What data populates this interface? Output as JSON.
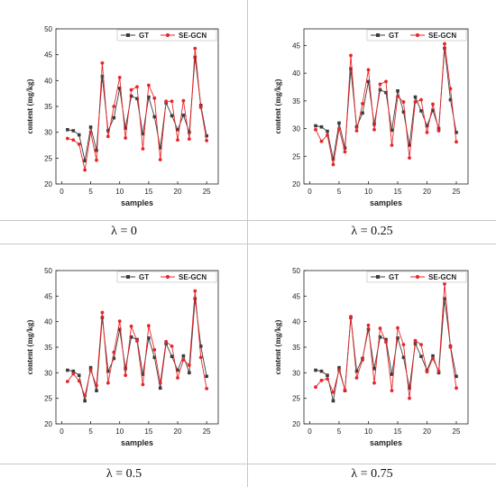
{
  "colors": {
    "gt": "#3b3b3b",
    "pred": "#e8262a",
    "axis": "#222222",
    "frame": "#c8c8c8"
  },
  "legend": {
    "gt_label": "GT",
    "pred_label": "SE-GCN"
  },
  "captions": [
    "λ = 0",
    "λ = 0.25",
    "λ = 0.5",
    "λ = 0.75"
  ],
  "chart_data": [
    {
      "type": "line",
      "xlabel": "samples",
      "ylabel": "content (mg/kg)",
      "xlim": [
        -1,
        27
      ],
      "ylim": [
        20,
        50
      ],
      "xticks": [
        0,
        5,
        10,
        15,
        20,
        25
      ],
      "yticks": [
        20,
        25,
        30,
        35,
        40,
        45,
        50
      ],
      "legend_position": "top-right",
      "x": [
        1,
        2,
        3,
        4,
        5,
        6,
        7,
        8,
        9,
        10,
        11,
        12,
        13,
        14,
        15,
        16,
        17,
        18,
        19,
        20,
        21,
        22,
        23,
        24,
        25
      ],
      "series": [
        {
          "name": "GT",
          "values": [
            30.5,
            30.3,
            29.5,
            24.5,
            31.0,
            26.5,
            40.8,
            30.3,
            32.8,
            38.5,
            30.8,
            37.0,
            36.5,
            29.7,
            36.8,
            33.0,
            27.0,
            35.7,
            33.2,
            30.5,
            33.3,
            30.0,
            44.5,
            35.2,
            29.3
          ]
        },
        {
          "name": "SE-GCN",
          "values": [
            28.8,
            28.5,
            27.7,
            22.7,
            30.0,
            24.6,
            43.4,
            29.2,
            35.0,
            40.6,
            28.9,
            38.2,
            38.8,
            26.8,
            39.1,
            36.6,
            24.7,
            36.0,
            36.0,
            28.5,
            36.1,
            28.7,
            46.2,
            34.8,
            28.4
          ]
        }
      ]
    },
    {
      "type": "line",
      "xlabel": "samples",
      "ylabel": "content (mg/kg)",
      "xlim": [
        -1,
        27
      ],
      "ylim": [
        20,
        48
      ],
      "xticks": [
        0,
        5,
        10,
        15,
        20,
        25
      ],
      "yticks": [
        20,
        25,
        30,
        35,
        40,
        45
      ],
      "legend_position": "top-right",
      "x": [
        1,
        2,
        3,
        4,
        5,
        6,
        7,
        8,
        9,
        10,
        11,
        12,
        13,
        14,
        15,
        16,
        17,
        18,
        19,
        20,
        21,
        22,
        23,
        24,
        25
      ],
      "series": [
        {
          "name": "GT",
          "values": [
            30.5,
            30.3,
            29.5,
            24.5,
            31.0,
            26.5,
            40.8,
            30.3,
            32.8,
            38.5,
            30.8,
            37.0,
            36.5,
            29.7,
            36.8,
            33.0,
            27.0,
            35.7,
            33.2,
            30.5,
            33.3,
            30.0,
            44.5,
            35.2,
            29.3
          ]
        },
        {
          "name": "SE-GCN",
          "values": [
            29.8,
            27.7,
            28.8,
            23.5,
            30.0,
            25.8,
            43.2,
            29.6,
            34.5,
            40.6,
            29.8,
            38.0,
            38.5,
            27.0,
            35.8,
            34.8,
            24.7,
            34.8,
            35.2,
            29.3,
            34.4,
            29.6,
            45.3,
            37.2,
            27.6
          ]
        }
      ]
    },
    {
      "type": "line",
      "xlabel": "samples",
      "ylabel": "content (mg/kg)",
      "xlim": [
        -1,
        27
      ],
      "ylim": [
        20,
        50
      ],
      "xticks": [
        0,
        5,
        10,
        15,
        20,
        25
      ],
      "yticks": [
        20,
        25,
        30,
        35,
        40,
        45,
        50
      ],
      "legend_position": "top-right",
      "x": [
        1,
        2,
        3,
        4,
        5,
        6,
        7,
        8,
        9,
        10,
        11,
        12,
        13,
        14,
        15,
        16,
        17,
        18,
        19,
        20,
        21,
        22,
        23,
        24,
        25
      ],
      "series": [
        {
          "name": "GT",
          "values": [
            30.5,
            30.3,
            29.5,
            24.5,
            31.0,
            26.5,
            40.8,
            30.3,
            32.8,
            38.5,
            30.8,
            37.0,
            36.5,
            29.7,
            36.8,
            33.0,
            27.0,
            35.7,
            33.2,
            30.5,
            33.3,
            30.0,
            44.5,
            35.2,
            29.3
          ]
        },
        {
          "name": "SE-GCN",
          "values": [
            28.3,
            29.8,
            28.4,
            25.5,
            30.5,
            27.5,
            41.8,
            28.0,
            34.0,
            40.1,
            29.5,
            39.1,
            36.2,
            27.7,
            39.2,
            34.5,
            28.0,
            36.1,
            35.2,
            29.0,
            32.5,
            31.5,
            46.0,
            33.0,
            26.9
          ]
        }
      ]
    },
    {
      "type": "line",
      "xlabel": "samples",
      "ylabel": "content (mg/kg)",
      "xlim": [
        -1,
        27
      ],
      "ylim": [
        20,
        50
      ],
      "xticks": [
        0,
        5,
        10,
        15,
        20,
        25
      ],
      "yticks": [
        20,
        25,
        30,
        35,
        40,
        45,
        50
      ],
      "legend_position": "top-right",
      "x": [
        1,
        2,
        3,
        4,
        5,
        6,
        7,
        8,
        9,
        10,
        11,
        12,
        13,
        14,
        15,
        16,
        17,
        18,
        19,
        20,
        21,
        22,
        23,
        24,
        25
      ],
      "series": [
        {
          "name": "GT",
          "values": [
            30.5,
            30.3,
            29.5,
            24.5,
            31.0,
            26.5,
            40.8,
            30.3,
            32.8,
            38.5,
            30.8,
            37.0,
            36.5,
            29.7,
            36.8,
            33.0,
            27.0,
            35.7,
            33.2,
            30.5,
            33.3,
            30.0,
            44.5,
            35.2,
            29.3
          ]
        },
        {
          "name": "SE-GCN",
          "values": [
            27.2,
            28.5,
            28.8,
            26.2,
            30.5,
            26.6,
            41.0,
            29.0,
            32.5,
            39.3,
            28.0,
            38.7,
            36.0,
            26.5,
            38.8,
            35.5,
            25.0,
            36.3,
            35.5,
            30.2,
            32.8,
            30.3,
            47.4,
            35.0,
            27.0
          ]
        }
      ]
    }
  ]
}
